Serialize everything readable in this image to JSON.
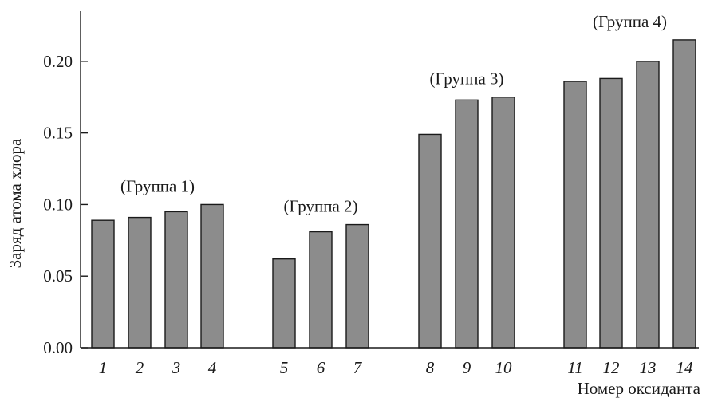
{
  "chart_data": {
    "type": "bar",
    "categories": [
      "1",
      "2",
      "3",
      "4",
      "5",
      "6",
      "7",
      "8",
      "9",
      "10",
      "11",
      "12",
      "13",
      "14"
    ],
    "values": [
      0.089,
      0.091,
      0.095,
      0.1,
      0.062,
      0.081,
      0.086,
      0.149,
      0.173,
      0.175,
      0.186,
      0.188,
      0.2,
      0.215
    ],
    "xlabel": "Номер оксиданта",
    "ylabel": "Заряд атома хлора",
    "ylim": [
      0.0,
      0.235
    ],
    "yticks": [
      "0.00",
      "0.05",
      "0.10",
      "0.15",
      "0.20"
    ],
    "grid": false,
    "bar_color": "#8c8c8c",
    "groups": [
      {
        "label": "(Группа 1)",
        "members": [
          "1",
          "2",
          "3",
          "4"
        ]
      },
      {
        "label": "(Группа 2)",
        "members": [
          "5",
          "6",
          "7"
        ]
      },
      {
        "label": "(Группа 3)",
        "members": [
          "8",
          "9",
          "10"
        ]
      },
      {
        "label": "(Группа 4)",
        "members": [
          "11",
          "12",
          "13",
          "14"
        ]
      }
    ]
  }
}
